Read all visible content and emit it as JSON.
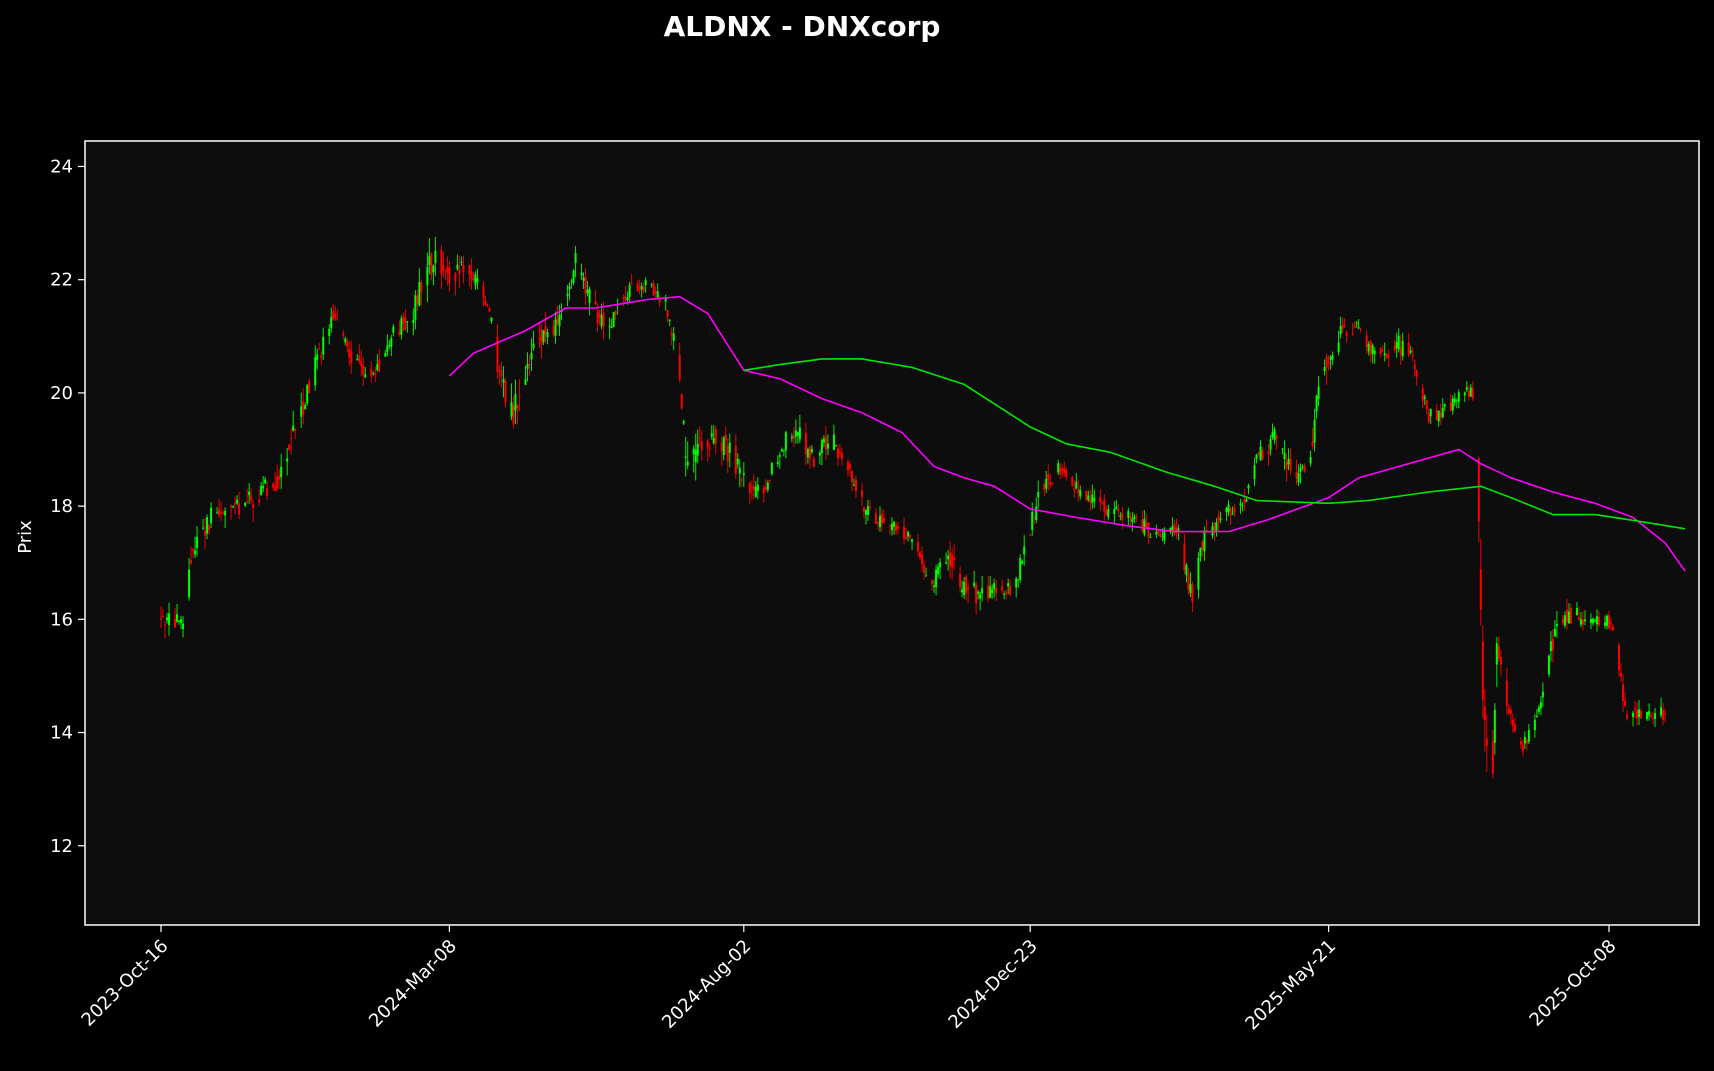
{
  "chart_data": {
    "type": "candlestick",
    "title": "ALDNX - DNXcorp",
    "xlabel": "",
    "ylabel": "Prix",
    "x_tick_labels": [
      "2023-Oct-16",
      "2024-Mar-08",
      "2024-Aug-02",
      "2024-Dec-23",
      "2025-May-21",
      "2025-Oct-08"
    ],
    "y_ticks": [
      12,
      14,
      16,
      18,
      20,
      22,
      24
    ],
    "ylim": [
      10.6,
      24.45
    ],
    "x_start": "2023-10-16",
    "x_end": "2025-10-20",
    "grid": false,
    "colors": {
      "background": "#000000",
      "plot_background": "#0d0d0d",
      "up": "#00ff00",
      "down": "#ff0000",
      "ma_fast": "#ff00ff",
      "ma_slow": "#00e600"
    },
    "price_path": [
      [
        "2023-10-16",
        16.0,
        0.5
      ],
      [
        "2023-10-27",
        15.9,
        0.5
      ],
      [
        "2023-11-01",
        17.3,
        0.6
      ],
      [
        "2023-11-10",
        17.8,
        0.5
      ],
      [
        "2023-11-24",
        18.0,
        0.5
      ],
      [
        "2023-12-05",
        18.2,
        0.6
      ],
      [
        "2023-12-15",
        18.6,
        0.7
      ],
      [
        "2024-01-02",
        20.6,
        0.6
      ],
      [
        "2024-01-10",
        21.4,
        0.4
      ],
      [
        "2024-01-20",
        20.6,
        0.5
      ],
      [
        "2024-01-31",
        20.3,
        0.4
      ],
      [
        "2024-02-08",
        21.0,
        0.5
      ],
      [
        "2024-02-18",
        21.3,
        0.5
      ],
      [
        "2024-02-25",
        22.1,
        0.8
      ],
      [
        "2024-03-02",
        22.4,
        0.6
      ],
      [
        "2024-03-10",
        22.0,
        0.6
      ],
      [
        "2024-03-15",
        22.3,
        0.6
      ],
      [
        "2024-03-22",
        21.9,
        0.4
      ],
      [
        "2024-03-28",
        21.5,
        0.4
      ],
      [
        "2024-04-01",
        20.4,
        0.6
      ],
      [
        "2024-04-08",
        19.6,
        0.8
      ],
      [
        "2024-04-15",
        20.3,
        0.6
      ],
      [
        "2024-04-22",
        21.0,
        0.6
      ],
      [
        "2024-05-01",
        21.2,
        0.5
      ],
      [
        "2024-05-10",
        22.3,
        0.6
      ],
      [
        "2024-05-18",
        21.5,
        0.7
      ],
      [
        "2024-05-26",
        21.2,
        0.5
      ],
      [
        "2024-06-05",
        21.8,
        0.4
      ],
      [
        "2024-06-15",
        21.9,
        0.3
      ],
      [
        "2024-06-24",
        21.6,
        0.4
      ],
      [
        "2024-07-01",
        20.4,
        0.6
      ],
      [
        "2024-07-04",
        18.6,
        1.0
      ],
      [
        "2024-07-11",
        19.0,
        0.7
      ],
      [
        "2024-07-20",
        19.3,
        0.6
      ],
      [
        "2024-07-28",
        18.8,
        0.6
      ],
      [
        "2024-08-05",
        18.2,
        0.5
      ],
      [
        "2024-08-12",
        18.3,
        0.4
      ],
      [
        "2024-08-20",
        19.0,
        0.5
      ],
      [
        "2024-08-28",
        19.4,
        0.5
      ],
      [
        "2024-09-06",
        18.8,
        0.5
      ],
      [
        "2024-09-14",
        19.2,
        0.5
      ],
      [
        "2024-09-22",
        18.8,
        0.5
      ],
      [
        "2024-10-01",
        18.0,
        0.4
      ],
      [
        "2024-10-10",
        17.7,
        0.4
      ],
      [
        "2024-10-20",
        17.6,
        0.4
      ],
      [
        "2024-10-28",
        17.2,
        0.4
      ],
      [
        "2024-11-04",
        16.6,
        0.4
      ],
      [
        "2024-11-12",
        17.2,
        0.6
      ],
      [
        "2024-11-20",
        16.6,
        0.6
      ],
      [
        "2024-11-28",
        16.4,
        0.5
      ],
      [
        "2024-12-06",
        16.6,
        0.4
      ],
      [
        "2024-12-15",
        16.5,
        0.4
      ],
      [
        "2024-12-22",
        17.5,
        0.6
      ],
      [
        "2024-12-30",
        18.4,
        0.5
      ],
      [
        "2025-01-08",
        18.7,
        0.4
      ],
      [
        "2025-01-18",
        18.2,
        0.4
      ],
      [
        "2025-01-28",
        18.0,
        0.4
      ],
      [
        "2025-02-06",
        17.9,
        0.4
      ],
      [
        "2025-02-16",
        17.7,
        0.4
      ],
      [
        "2025-02-26",
        17.4,
        0.4
      ],
      [
        "2025-03-06",
        17.6,
        0.4
      ],
      [
        "2025-03-14",
        16.4,
        0.7
      ],
      [
        "2025-03-20",
        17.4,
        0.5
      ],
      [
        "2025-03-30",
        17.9,
        0.4
      ],
      [
        "2025-04-08",
        18.0,
        0.4
      ],
      [
        "2025-04-16",
        18.9,
        0.5
      ],
      [
        "2025-04-24",
        19.2,
        0.5
      ],
      [
        "2025-05-02",
        18.6,
        0.6
      ],
      [
        "2025-05-10",
        18.6,
        0.5
      ],
      [
        "2025-05-18",
        20.4,
        0.8
      ],
      [
        "2025-05-26",
        21.0,
        0.5
      ],
      [
        "2025-06-04",
        21.2,
        0.4
      ],
      [
        "2025-06-14",
        20.6,
        0.4
      ],
      [
        "2025-06-24",
        20.9,
        0.5
      ],
      [
        "2025-07-02",
        20.6,
        0.4
      ],
      [
        "2025-07-10",
        19.6,
        0.4
      ],
      [
        "2025-07-18",
        19.7,
        0.4
      ],
      [
        "2025-07-26",
        20.0,
        0.3
      ],
      [
        "2025-08-02",
        20.0,
        0.3
      ],
      [
        "2025-08-06",
        15.0,
        1.6
      ],
      [
        "2025-08-10",
        12.4,
        0.8
      ],
      [
        "2025-08-13",
        15.8,
        0.9
      ],
      [
        "2025-08-19",
        14.4,
        0.5
      ],
      [
        "2025-08-25",
        13.7,
        0.3
      ],
      [
        "2025-09-02",
        14.2,
        0.3
      ],
      [
        "2025-09-10",
        15.6,
        0.6
      ],
      [
        "2025-09-18",
        16.1,
        0.5
      ],
      [
        "2025-09-26",
        16.0,
        0.4
      ],
      [
        "2025-10-04",
        16.0,
        0.4
      ],
      [
        "2025-10-10",
        15.9,
        0.3
      ],
      [
        "2025-10-16",
        14.4,
        0.5
      ],
      [
        "2025-10-22",
        14.3,
        0.4
      ],
      [
        "2025-10-30",
        14.3,
        0.3
      ],
      [
        "2025-11-06",
        14.4,
        0.5
      ]
    ],
    "series": [
      {
        "name": "",
        "color": "#ff00ff",
        "x": [
          "2024-03-08",
          "2024-03-20",
          "2024-04-15",
          "2024-05-05",
          "2024-05-20",
          "2024-06-15",
          "2024-07-01",
          "2024-07-15",
          "2024-08-02",
          "2024-08-20",
          "2024-09-10",
          "2024-09-30",
          "2024-10-20",
          "2024-11-05",
          "2024-11-20",
          "2024-12-05",
          "2024-12-23",
          "2025-01-15",
          "2025-02-10",
          "2025-03-05",
          "2025-04-01",
          "2025-04-20",
          "2025-05-21",
          "2025-06-05",
          "2025-06-30",
          "2025-07-25",
          "2025-08-05",
          "2025-08-20",
          "2025-09-10",
          "2025-10-01",
          "2025-10-20",
          "2025-11-05",
          "2025-11-15"
        ],
        "values": [
          20.3,
          20.7,
          21.1,
          21.5,
          21.5,
          21.65,
          21.7,
          21.4,
          20.4,
          20.25,
          19.9,
          19.65,
          19.3,
          18.7,
          18.5,
          18.35,
          17.95,
          17.8,
          17.65,
          17.55,
          17.55,
          17.75,
          18.15,
          18.5,
          18.75,
          19.0,
          18.75,
          18.5,
          18.25,
          18.05,
          17.8,
          17.35,
          16.85
        ]
      },
      {
        "name": "",
        "color": "#00e600",
        "x": [
          "2024-08-02",
          "2024-08-20",
          "2024-09-10",
          "2024-09-30",
          "2024-10-25",
          "2024-11-20",
          "2024-12-23",
          "2025-01-10",
          "2025-02-01",
          "2025-03-01",
          "2025-03-25",
          "2025-04-15",
          "2025-05-21",
          "2025-06-10",
          "2025-07-10",
          "2025-08-05",
          "2025-08-20",
          "2025-09-10",
          "2025-10-01",
          "2025-10-20",
          "2025-11-15"
        ],
        "values": [
          20.4,
          20.5,
          20.6,
          20.6,
          20.45,
          20.15,
          19.4,
          19.1,
          18.95,
          18.6,
          18.35,
          18.1,
          18.05,
          18.1,
          18.25,
          18.35,
          18.15,
          17.85,
          17.85,
          17.75,
          17.6
        ]
      }
    ]
  }
}
